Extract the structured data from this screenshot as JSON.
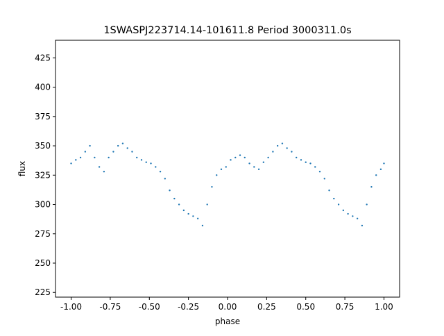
{
  "chart_data": {
    "type": "scatter",
    "title": "1SWASPJ223714.14-101611.8 Period 3000311.0s",
    "xlabel": "phase",
    "ylabel": "flux",
    "xlim": [
      -1.1,
      1.1
    ],
    "ylim": [
      221,
      440
    ],
    "x_ticks": [
      -1.0,
      -0.75,
      -0.5,
      -0.25,
      0.0,
      0.25,
      0.5,
      0.75,
      1.0
    ],
    "x_tick_labels": [
      "-1.00",
      "-0.75",
      "-0.50",
      "-0.25",
      "0.00",
      "0.25",
      "0.50",
      "0.75",
      "1.00"
    ],
    "y_ticks": [
      225,
      250,
      275,
      300,
      325,
      350,
      375,
      400,
      425
    ],
    "y_tick_labels": [
      "225",
      "250",
      "275",
      "300",
      "325",
      "350",
      "375",
      "400",
      "425"
    ],
    "grid": false,
    "marker_color": "#1f77b4",
    "series": [
      {
        "x": [
          -1.0,
          -0.97,
          -0.94,
          -0.91,
          -0.88,
          -0.85,
          -0.82,
          -0.79,
          -0.76,
          -0.73,
          -0.7,
          -0.67,
          -0.64,
          -0.61,
          -0.58,
          -0.55,
          -0.52,
          -0.49,
          -0.46,
          -0.43,
          -0.4,
          -0.37,
          -0.34,
          -0.31,
          -0.28,
          -0.25,
          -0.22,
          -0.19,
          -0.16,
          -0.13,
          -0.1,
          -0.07,
          -0.04,
          -0.01,
          0.02,
          0.05,
          0.08,
          0.11,
          0.14,
          0.17,
          0.2,
          0.23,
          0.26,
          0.29,
          0.32,
          0.35,
          0.38,
          0.41,
          0.44,
          0.47,
          0.5,
          0.53,
          0.56,
          0.59,
          0.62,
          0.65,
          0.68,
          0.71,
          0.74,
          0.77,
          0.8,
          0.83,
          0.86,
          0.89,
          0.92,
          0.95,
          0.98,
          1.0
        ],
        "y": [
          335,
          338,
          340,
          345,
          350,
          340,
          332,
          328,
          340,
          345,
          350,
          352,
          348,
          345,
          340,
          338,
          336,
          335,
          332,
          328,
          322,
          312,
          305,
          300,
          295,
          292,
          290,
          288,
          282,
          300,
          315,
          325,
          330,
          332,
          338,
          340,
          342,
          340,
          335,
          332,
          330,
          336,
          340,
          345,
          350,
          352,
          348,
          345,
          340,
          338,
          336,
          335,
          332,
          328,
          322,
          312,
          305,
          300,
          295,
          292,
          290,
          288,
          282,
          300,
          315,
          325,
          330,
          335
        ]
      }
    ]
  }
}
